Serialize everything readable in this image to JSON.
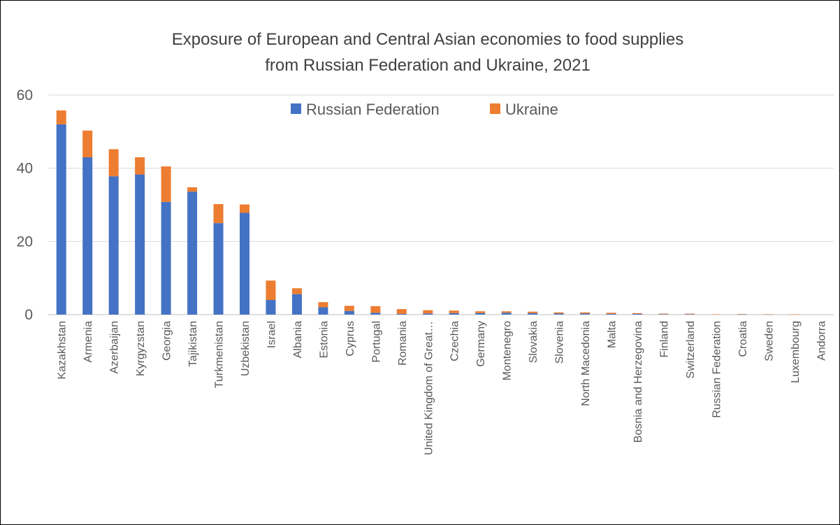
{
  "chart_data": {
    "type": "bar",
    "stacked": true,
    "title": "Exposure of European and Central Asian economies to food supplies from Russian Federation and Ukraine, 2021",
    "title_lines": [
      "Exposure of European and Central Asian economies to food supplies",
      "from Russian Federation and Ukraine, 2021"
    ],
    "xlabel": "",
    "ylabel": "",
    "ylim": [
      0,
      60
    ],
    "yticks": [
      0,
      20,
      40,
      60
    ],
    "grid": true,
    "legend_position": "top",
    "categories": [
      "Kazakhstan",
      "Armenia",
      "Azerbaijan",
      "Kyrgyzstan",
      "Georgia",
      "Tajikistan",
      "Turkmenistan",
      "Uzbekistan",
      "Israel",
      "Albania",
      "Estonia",
      "Cyprus",
      "Portugal",
      "Romania",
      "United Kingdom of Great…",
      "Czechia",
      "Germany",
      "Montenegro",
      "Slovakia",
      "Slovenia",
      "North Macedonia",
      "Malta",
      "Bosnia and Herzegovina",
      "Finland",
      "Switzerland",
      "Russian Federation",
      "Croatia",
      "Sweden",
      "Luxembourg",
      "Andorra"
    ],
    "series": [
      {
        "name": "Russian Federation",
        "color": "#4472C4",
        "values": [
          52,
          43,
          37.8,
          38.3,
          30.8,
          33.6,
          25,
          27.8,
          4,
          5.6,
          2,
          1,
          0.5,
          0.2,
          0.3,
          0.4,
          0.4,
          0.5,
          0.4,
          0.3,
          0.3,
          0.2,
          0.2,
          0.1,
          0.1,
          0,
          0.05,
          0.05,
          0,
          0
        ]
      },
      {
        "name": "Ukraine",
        "color": "#ED7D31",
        "values": [
          3.8,
          7.3,
          7.4,
          4.7,
          9.7,
          1.2,
          5.2,
          2.3,
          5.3,
          1.6,
          1.4,
          1.4,
          1.8,
          1.3,
          0.9,
          0.7,
          0.5,
          0.4,
          0.4,
          0.3,
          0.3,
          0.3,
          0.2,
          0.15,
          0.15,
          0.1,
          0.1,
          0.05,
          0.03,
          0
        ]
      }
    ]
  }
}
